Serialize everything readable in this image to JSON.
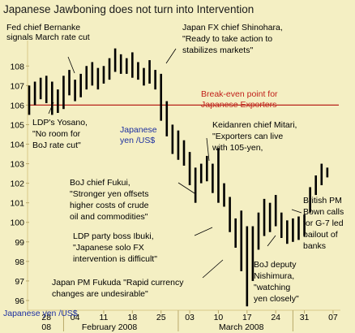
{
  "chart_data": {
    "type": "candlestick",
    "title": "Japanese Jawboning does not turn into Intervention",
    "y_axis_label_top": "Japanese yen /US$",
    "y_axis_label_bottom": "Japanese yen /US$",
    "ylim": [
      95.5,
      109.3
    ],
    "y_ticks": [
      96,
      97,
      98,
      99,
      100,
      101,
      102,
      103,
      104,
      105,
      106,
      107,
      108
    ],
    "x_tick_labels": [
      {
        "label": "28",
        "day": 3
      },
      {
        "label": "04",
        "day": 8
      },
      {
        "label": "11",
        "day": 13
      },
      {
        "label": "18",
        "day": 18
      },
      {
        "label": "25",
        "day": 23
      },
      {
        "label": "03",
        "day": 28
      },
      {
        "label": "10",
        "day": 33
      },
      {
        "label": "17",
        "day": 38
      },
      {
        "label": "24",
        "day": 43
      },
      {
        "label": "31",
        "day": 48
      },
      {
        "label": "07",
        "day": 53
      }
    ],
    "x_period_labels": [
      {
        "label": "08",
        "day": 3
      },
      {
        "label": "February 2008",
        "day": 14
      },
      {
        "label": "March 2008",
        "day": 37
      }
    ],
    "x_range": [
      0,
      54
    ],
    "break_even": {
      "value": 106.0,
      "label_line1": "Break-even point for",
      "label_line2": "Japanese Exporters"
    },
    "bars": [
      {
        "day": 0,
        "high": 107.0,
        "low": 105.5
      },
      {
        "day": 1,
        "high": 107.2,
        "low": 106.0
      },
      {
        "day": 2,
        "high": 107.4,
        "low": 106.3
      },
      {
        "day": 3,
        "high": 107.5,
        "low": 106.1
      },
      {
        "day": 4,
        "high": 107.2,
        "low": 105.5
      },
      {
        "day": 5,
        "high": 106.8,
        "low": 105.6
      },
      {
        "day": 6,
        "high": 107.5,
        "low": 105.8
      },
      {
        "day": 7,
        "high": 107.8,
        "low": 106.5
      },
      {
        "day": 8,
        "high": 107.3,
        "low": 106.2
      },
      {
        "day": 9,
        "high": 107.6,
        "low": 106.4
      },
      {
        "day": 10,
        "high": 108.0,
        "low": 106.8
      },
      {
        "day": 11,
        "high": 108.2,
        "low": 107.0
      },
      {
        "day": 12,
        "high": 107.9,
        "low": 106.8
      },
      {
        "day": 13,
        "high": 108.0,
        "low": 107.1
      },
      {
        "day": 14,
        "high": 108.4,
        "low": 107.3
      },
      {
        "day": 15,
        "high": 108.9,
        "low": 107.7
      },
      {
        "day": 16,
        "high": 108.6,
        "low": 107.6
      },
      {
        "day": 17,
        "high": 108.4,
        "low": 107.6
      },
      {
        "day": 18,
        "high": 108.7,
        "low": 107.4
      },
      {
        "day": 19,
        "high": 108.2,
        "low": 107.3
      },
      {
        "day": 20,
        "high": 107.9,
        "low": 107.0
      },
      {
        "day": 21,
        "high": 108.3,
        "low": 107.1
      },
      {
        "day": 22,
        "high": 107.8,
        "low": 106.8
      },
      {
        "day": 23,
        "high": 107.6,
        "low": 105.2
      },
      {
        "day": 24,
        "high": 106.2,
        "low": 104.4
      },
      {
        "day": 25,
        "high": 105.0,
        "low": 103.5
      },
      {
        "day": 26,
        "high": 104.7,
        "low": 103.2
      },
      {
        "day": 27,
        "high": 104.2,
        "low": 102.9
      },
      {
        "day": 28,
        "high": 103.6,
        "low": 101.9
      },
      {
        "day": 29,
        "high": 102.8,
        "low": 101.0
      },
      {
        "day": 30,
        "high": 103.0,
        "low": 102.0
      },
      {
        "day": 31,
        "high": 103.4,
        "low": 102.1
      },
      {
        "day": 32,
        "high": 103.0,
        "low": 101.5
      },
      {
        "day": 33,
        "high": 103.8,
        "low": 101.0
      },
      {
        "day": 34,
        "high": 102.0,
        "low": 100.8
      },
      {
        "day": 35,
        "high": 101.3,
        "low": 99.5
      },
      {
        "day": 36,
        "high": 100.2,
        "low": 98.7
      },
      {
        "day": 37,
        "high": 100.6,
        "low": 97.5
      },
      {
        "day": 38,
        "high": 99.8,
        "low": 95.7
      },
      {
        "day": 39,
        "high": 99.8,
        "low": 97.0
      },
      {
        "day": 40,
        "high": 100.5,
        "low": 98.6
      },
      {
        "day": 41,
        "high": 101.2,
        "low": 99.3
      },
      {
        "day": 42,
        "high": 101.0,
        "low": 99.5
      },
      {
        "day": 43,
        "high": 101.4,
        "low": 99.8
      },
      {
        "day": 44,
        "high": 100.5,
        "low": 99.2
      },
      {
        "day": 45,
        "high": 100.1,
        "low": 98.9
      },
      {
        "day": 46,
        "high": 100.2,
        "low": 99.0
      },
      {
        "day": 47,
        "high": 100.3,
        "low": 99.1
      },
      {
        "day": 48,
        "high": 100.4,
        "low": 99.3
      },
      {
        "day": 49,
        "high": 101.8,
        "low": 100.5
      },
      {
        "day": 50,
        "high": 102.4,
        "low": 101.4
      },
      {
        "day": 51,
        "high": 103.0,
        "low": 101.9
      },
      {
        "day": 52,
        "high": 102.8,
        "low": 102.3
      }
    ],
    "annotations": [
      {
        "id": "bernanke",
        "lines": [
          "Fed chief Bernanke",
          "signals March rate cut"
        ]
      },
      {
        "id": "shinohara",
        "lines": [
          "Japan FX chief Shinohara,",
          "\"Ready to take action to",
          "stabilizes markets\""
        ]
      },
      {
        "id": "yosano",
        "lines": [
          "LDP's Yosano,",
          "\"No room for",
          "BoJ rate cut\""
        ]
      },
      {
        "id": "mitari",
        "lines": [
          "Keidanren chief Mitari,",
          "\"Exporters can live",
          "with 105-yen,"
        ]
      },
      {
        "id": "fukui",
        "lines": [
          "BoJ chief Fukui,",
          "\"Stronger yen offsets",
          "higher costs of crude",
          "oil and commodities\""
        ]
      },
      {
        "id": "ibuki",
        "lines": [
          "LDP party boss Ibuki,",
          "\"Japanese solo FX",
          "intervention is difficult\""
        ]
      },
      {
        "id": "bown",
        "lines": [
          "British PM",
          "Bown calls",
          "for G-7 led",
          "bailout of",
          "banks"
        ]
      },
      {
        "id": "nishimura",
        "lines": [
          "BoJ deputy",
          "Nishimura,",
          "\"watching",
          "yen closely\""
        ]
      },
      {
        "id": "fukuda",
        "lines": [
          "Japan PM Fukuda \"Rapid currency",
          "changes are undesirable\""
        ]
      }
    ]
  }
}
